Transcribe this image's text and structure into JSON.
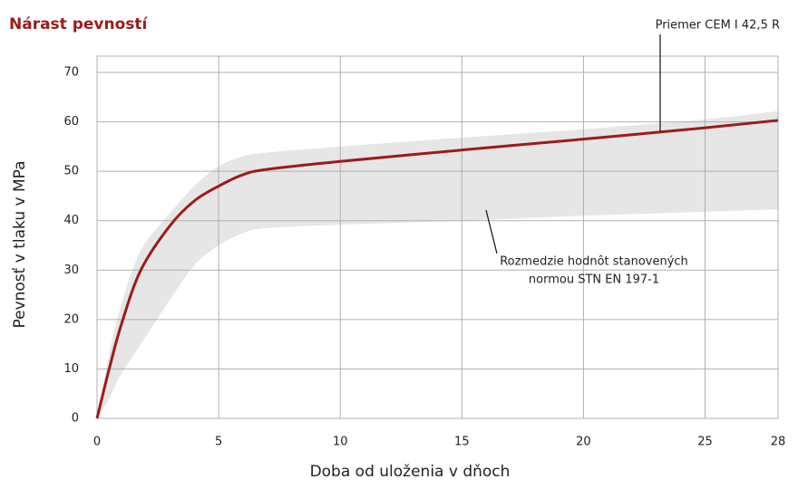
{
  "chart_data": {
    "type": "line",
    "title": "Nárast pevností",
    "x_label": "Doba od uloženia v dňoch",
    "y_label": "Pevnosť v tlaku v MPa",
    "x": [
      0,
      0.5,
      1,
      1.8,
      3,
      4,
      5,
      6,
      7,
      10,
      15,
      20,
      25,
      28
    ],
    "series": [
      {
        "name": "Priemer CEM I 42,5 R",
        "color": "#9b1b1b",
        "values": [
          0,
          10,
          19,
          30,
          39,
          44,
          47,
          49.3,
          50.4,
          52,
          54.3,
          56.5,
          58.8,
          60.3
        ]
      },
      {
        "type": "band",
        "name_lines": [
          "Rozmedzie hodnôt stanovených",
          "normou STN EN 197-1"
        ],
        "color": "#e6e6e6",
        "upper": [
          0,
          13,
          23,
          34,
          41.5,
          47,
          51,
          53,
          53.8,
          55,
          56.8,
          58.5,
          60.5,
          62.2
        ],
        "lower": [
          0,
          4,
          9,
          15,
          24,
          31,
          35,
          37.5,
          38.5,
          39.2,
          40,
          41,
          41.8,
          42.3
        ]
      }
    ],
    "xlim": [
      0,
      28
    ],
    "xticks": [
      0,
      5,
      10,
      15,
      20,
      25,
      28
    ],
    "ylim": [
      0,
      70
    ],
    "yticks": [
      0,
      10,
      20,
      30,
      40,
      50,
      60,
      70
    ],
    "grid": true
  }
}
